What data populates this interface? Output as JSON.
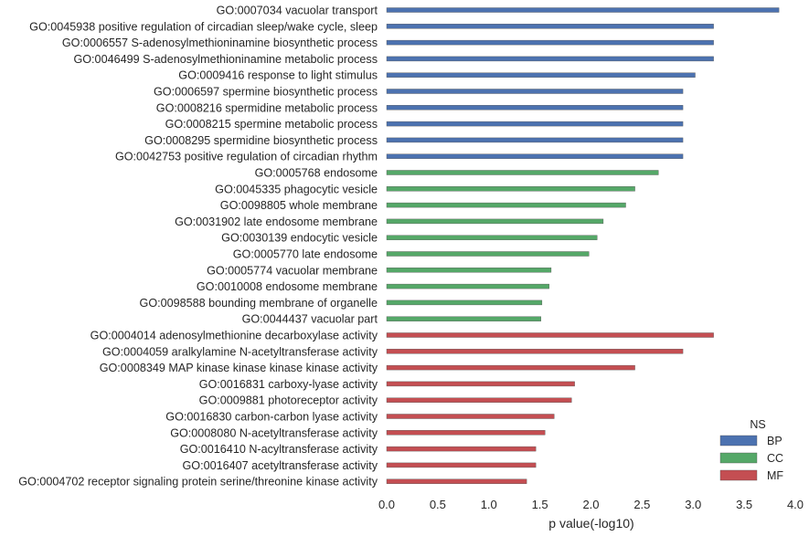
{
  "chart_data": {
    "type": "bar",
    "orientation": "horizontal",
    "title": "",
    "xlabel": "p value(-log10)",
    "ylabel": "",
    "xlim": [
      0,
      4.0
    ],
    "xticks": [
      "0.0",
      "0.5",
      "1.0",
      "1.5",
      "2.0",
      "2.5",
      "3.0",
      "3.5",
      "4.0"
    ],
    "grid": false,
    "legend": {
      "title": "NS",
      "placement": "bottom-right",
      "entries": [
        {
          "name": "BP",
          "color": "#4c72b0"
        },
        {
          "name": "CC",
          "color": "#55a868"
        },
        {
          "name": "MF",
          "color": "#c44e52"
        }
      ]
    },
    "bars": [
      {
        "label": "GO:0007034 vacuolar transport",
        "value": 3.84,
        "group": "BP"
      },
      {
        "label": "GO:0045938 positive regulation of circadian sleep/wake cycle, sleep",
        "value": 3.2,
        "group": "BP"
      },
      {
        "label": "GO:0006557 S-adenosylmethioninamine biosynthetic process",
        "value": 3.2,
        "group": "BP"
      },
      {
        "label": "GO:0046499 S-adenosylmethioninamine metabolic process",
        "value": 3.2,
        "group": "BP"
      },
      {
        "label": "GO:0009416 response to light stimulus",
        "value": 3.02,
        "group": "BP"
      },
      {
        "label": "GO:0006597 spermine biosynthetic process",
        "value": 2.9,
        "group": "BP"
      },
      {
        "label": "GO:0008216 spermidine metabolic process",
        "value": 2.9,
        "group": "BP"
      },
      {
        "label": "GO:0008215 spermine metabolic process",
        "value": 2.9,
        "group": "BP"
      },
      {
        "label": "GO:0008295 spermidine biosynthetic process",
        "value": 2.9,
        "group": "BP"
      },
      {
        "label": "GO:0042753 positive regulation of circadian rhythm",
        "value": 2.9,
        "group": "BP"
      },
      {
        "label": "GO:0005768 endosome",
        "value": 2.66,
        "group": "CC"
      },
      {
        "label": "GO:0045335 phagocytic vesicle",
        "value": 2.43,
        "group": "CC"
      },
      {
        "label": "GO:0098805 whole membrane",
        "value": 2.34,
        "group": "CC"
      },
      {
        "label": "GO:0031902 late endosome membrane",
        "value": 2.12,
        "group": "CC"
      },
      {
        "label": "GO:0030139 endocytic vesicle",
        "value": 2.06,
        "group": "CC"
      },
      {
        "label": "GO:0005770 late endosome",
        "value": 1.98,
        "group": "CC"
      },
      {
        "label": "GO:0005774 vacuolar membrane",
        "value": 1.61,
        "group": "CC"
      },
      {
        "label": "GO:0010008 endosome membrane",
        "value": 1.59,
        "group": "CC"
      },
      {
        "label": "GO:0098588 bounding membrane of organelle",
        "value": 1.52,
        "group": "CC"
      },
      {
        "label": "GO:0044437 vacuolar part",
        "value": 1.51,
        "group": "CC"
      },
      {
        "label": "GO:0004014 adenosylmethionine decarboxylase activity",
        "value": 3.2,
        "group": "MF"
      },
      {
        "label": "GO:0004059 aralkylamine N-acetyltransferase activity",
        "value": 2.9,
        "group": "MF"
      },
      {
        "label": "GO:0008349 MAP kinase kinase kinase kinase activity",
        "value": 2.43,
        "group": "MF"
      },
      {
        "label": "GO:0016831 carboxy-lyase activity",
        "value": 1.84,
        "group": "MF"
      },
      {
        "label": "GO:0009881 photoreceptor activity",
        "value": 1.81,
        "group": "MF"
      },
      {
        "label": "GO:0016830 carbon-carbon lyase activity",
        "value": 1.64,
        "group": "MF"
      },
      {
        "label": "GO:0008080 N-acetyltransferase activity",
        "value": 1.55,
        "group": "MF"
      },
      {
        "label": "GO:0016410 N-acyltransferase activity",
        "value": 1.46,
        "group": "MF"
      },
      {
        "label": "GO:0016407 acetyltransferase activity",
        "value": 1.46,
        "group": "MF"
      },
      {
        "label": "GO:0004702 receptor signaling protein serine/threonine kinase activity",
        "value": 1.37,
        "group": "MF"
      }
    ]
  }
}
